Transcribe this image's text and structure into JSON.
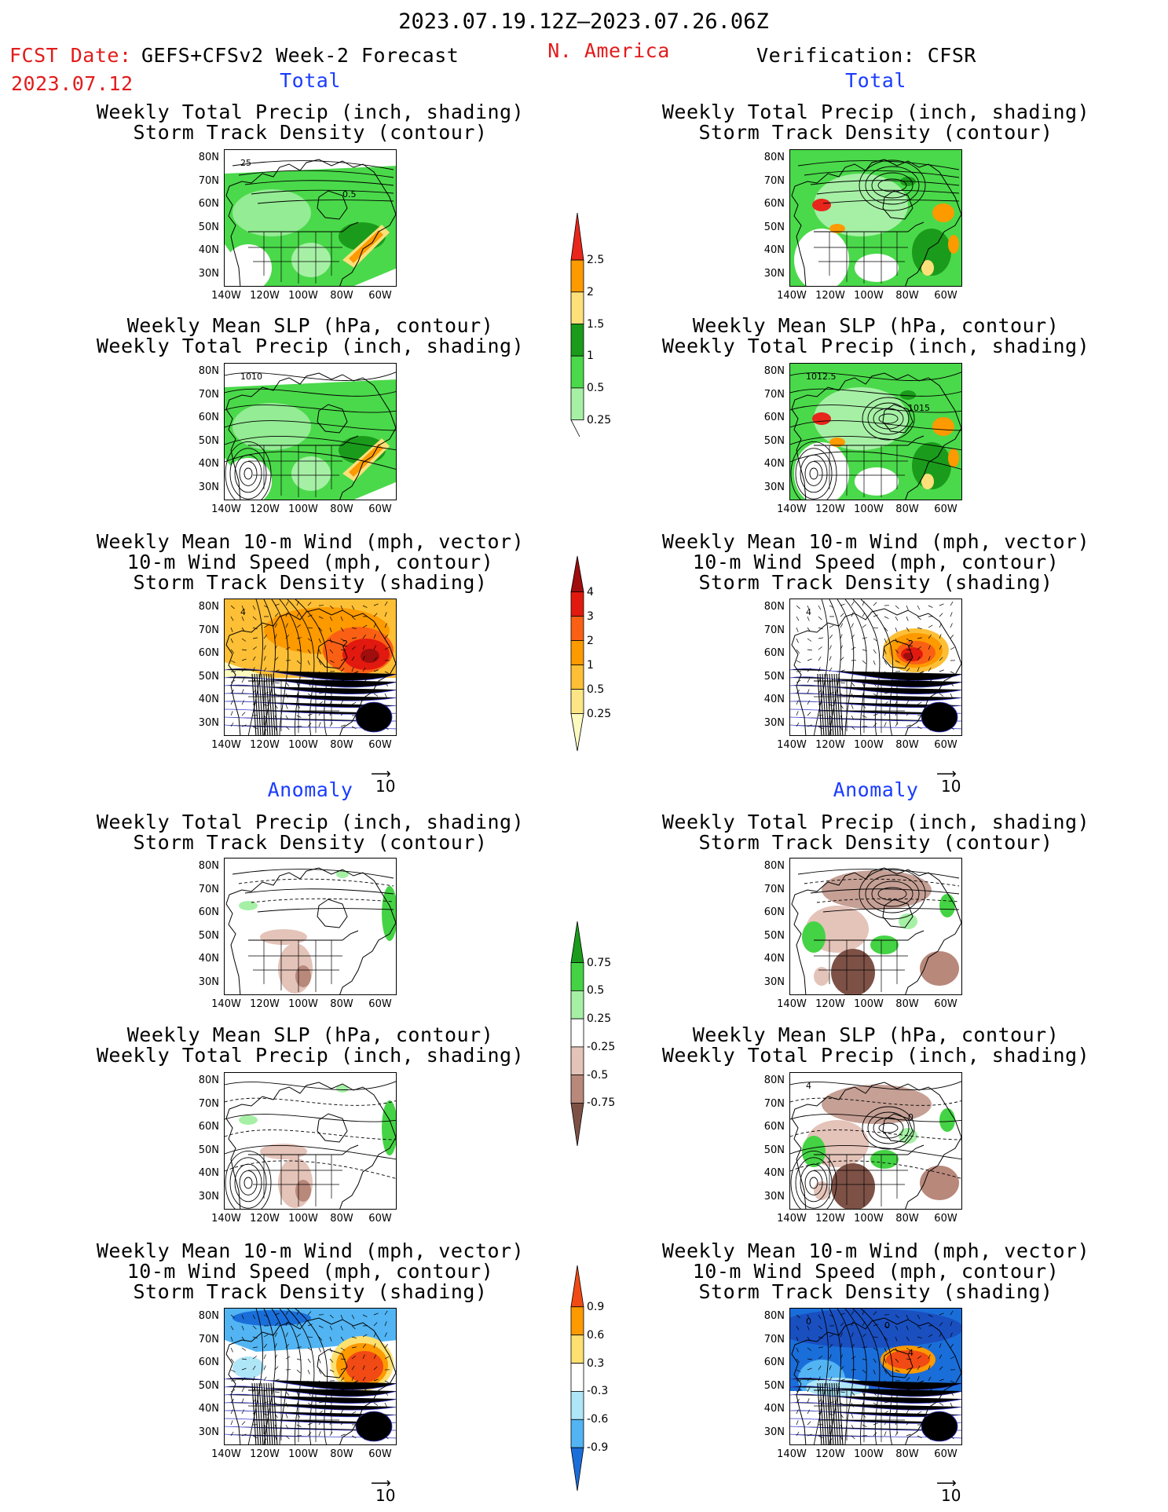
{
  "header": {
    "period": "2023.07.19.12Z–2023.07.26.06Z",
    "fcst_label": "FCST Date:",
    "fcst_date": "2023.07.12",
    "model": "GEFS+CFSv2 Week-2 Forecast",
    "region": "N. America",
    "verification": "Verification: CFSR"
  },
  "sections": {
    "total": "Total",
    "anomaly": "Anomaly"
  },
  "axes": {
    "lat": [
      "80N",
      "70N",
      "60N",
      "50N",
      "40N",
      "30N"
    ],
    "lon": [
      "140W",
      "120W",
      "100W",
      "80W",
      "60W"
    ]
  },
  "vector_ref": "10",
  "panels": [
    {
      "id": "f1",
      "t1": "Weekly Total Precip (inch, shading)",
      "t2": "Storm Track Density (contour)",
      "t3": "",
      "labels": [
        "25",
        "0.5"
      ]
    },
    {
      "id": "v1",
      "t1": "Weekly Total Precip (inch, shading)",
      "t2": "Storm Track Density (contour)",
      "t3": "",
      "labels": []
    },
    {
      "id": "f2",
      "t1": "Weekly Mean SLP (hPa, contour)",
      "t2": "Weekly Total Precip (inch, shading)",
      "t3": "",
      "labels": [
        "1010"
      ]
    },
    {
      "id": "v2",
      "t1": "Weekly Mean SLP (hPa, contour)",
      "t2": "Weekly Total Precip (inch, shading)",
      "t3": "",
      "labels": [
        "1012.5",
        "1015"
      ]
    },
    {
      "id": "f3",
      "t1": "Weekly Mean 10-m Wind (mph, vector)",
      "t2": "10-m Wind Speed (mph, contour)",
      "t3": "Storm Track Density (shading)",
      "labels": [
        "4",
        "2"
      ]
    },
    {
      "id": "v3",
      "t1": "Weekly Mean 10-m Wind (mph, vector)",
      "t2": "10-m Wind Speed (mph, contour)",
      "t3": "Storm Track Density (shading)",
      "labels": [
        "4",
        "2"
      ]
    },
    {
      "id": "f4",
      "t1": "Weekly Total Precip (inch, shading)",
      "t2": "Storm Track Density (contour)",
      "t3": "",
      "labels": []
    },
    {
      "id": "v4",
      "t1": "Weekly Total Precip (inch, shading)",
      "t2": "Storm Track Density (contour)",
      "t3": "",
      "labels": []
    },
    {
      "id": "f5",
      "t1": "Weekly Mean SLP (hPa, contour)",
      "t2": "Weekly Total Precip (inch, shading)",
      "t3": "",
      "labels": []
    },
    {
      "id": "v5",
      "t1": "Weekly Mean SLP (hPa, contour)",
      "t2": "Weekly Total Precip (inch, shading)",
      "t3": "",
      "labels": [
        "4",
        "0"
      ]
    },
    {
      "id": "f6",
      "t1": "Weekly Mean 10-m Wind (mph, vector)",
      "t2": "10-m Wind Speed (mph, contour)",
      "t3": "Storm Track Density (shading)",
      "labels": []
    },
    {
      "id": "v6",
      "t1": "Weekly Mean 10-m Wind (mph, vector)",
      "t2": "10-m Wind Speed (mph, contour)",
      "t3": "Storm Track Density (shading)",
      "labels": [
        "0",
        "4",
        "0"
      ]
    }
  ],
  "colorbars": [
    {
      "id": "cb-precip",
      "labels": [
        "2.5",
        "2",
        "1.5",
        "1",
        "0.5",
        "0.25"
      ],
      "colors": [
        "#e8261c",
        "#fd9a00",
        "#fde07a",
        "#1b9b1b",
        "#4ad94a",
        "#a6f0a6"
      ]
    },
    {
      "id": "cb-storm",
      "labels": [
        "4",
        "3",
        "2",
        "1",
        "0.5",
        "0.25"
      ],
      "colors": [
        "#9f0d0d",
        "#e2190f",
        "#fa6014",
        "#fd9a00",
        "#fdbf35",
        "#fde585",
        "#fdfac0"
      ]
    },
    {
      "id": "cb-precip-anom",
      "labels": [
        "0.75",
        "0.5",
        "0.25",
        "-0.25",
        "-0.5",
        "-0.75"
      ],
      "colors": [
        "#1b9b1b",
        "#44d344",
        "#a6f0a6",
        "#ffffff",
        "#e4c3b9",
        "#b8887b",
        "#7d5146"
      ]
    },
    {
      "id": "cb-storm-anom",
      "labels": [
        "0.9",
        "0.6",
        "0.3",
        "-0.3",
        "-0.6",
        "-0.9"
      ],
      "colors": [
        "#f14a14",
        "#fd9a00",
        "#fde070",
        "#ffffff",
        "#aee6f7",
        "#52b4f2",
        "#1a6ed9"
      ]
    }
  ]
}
